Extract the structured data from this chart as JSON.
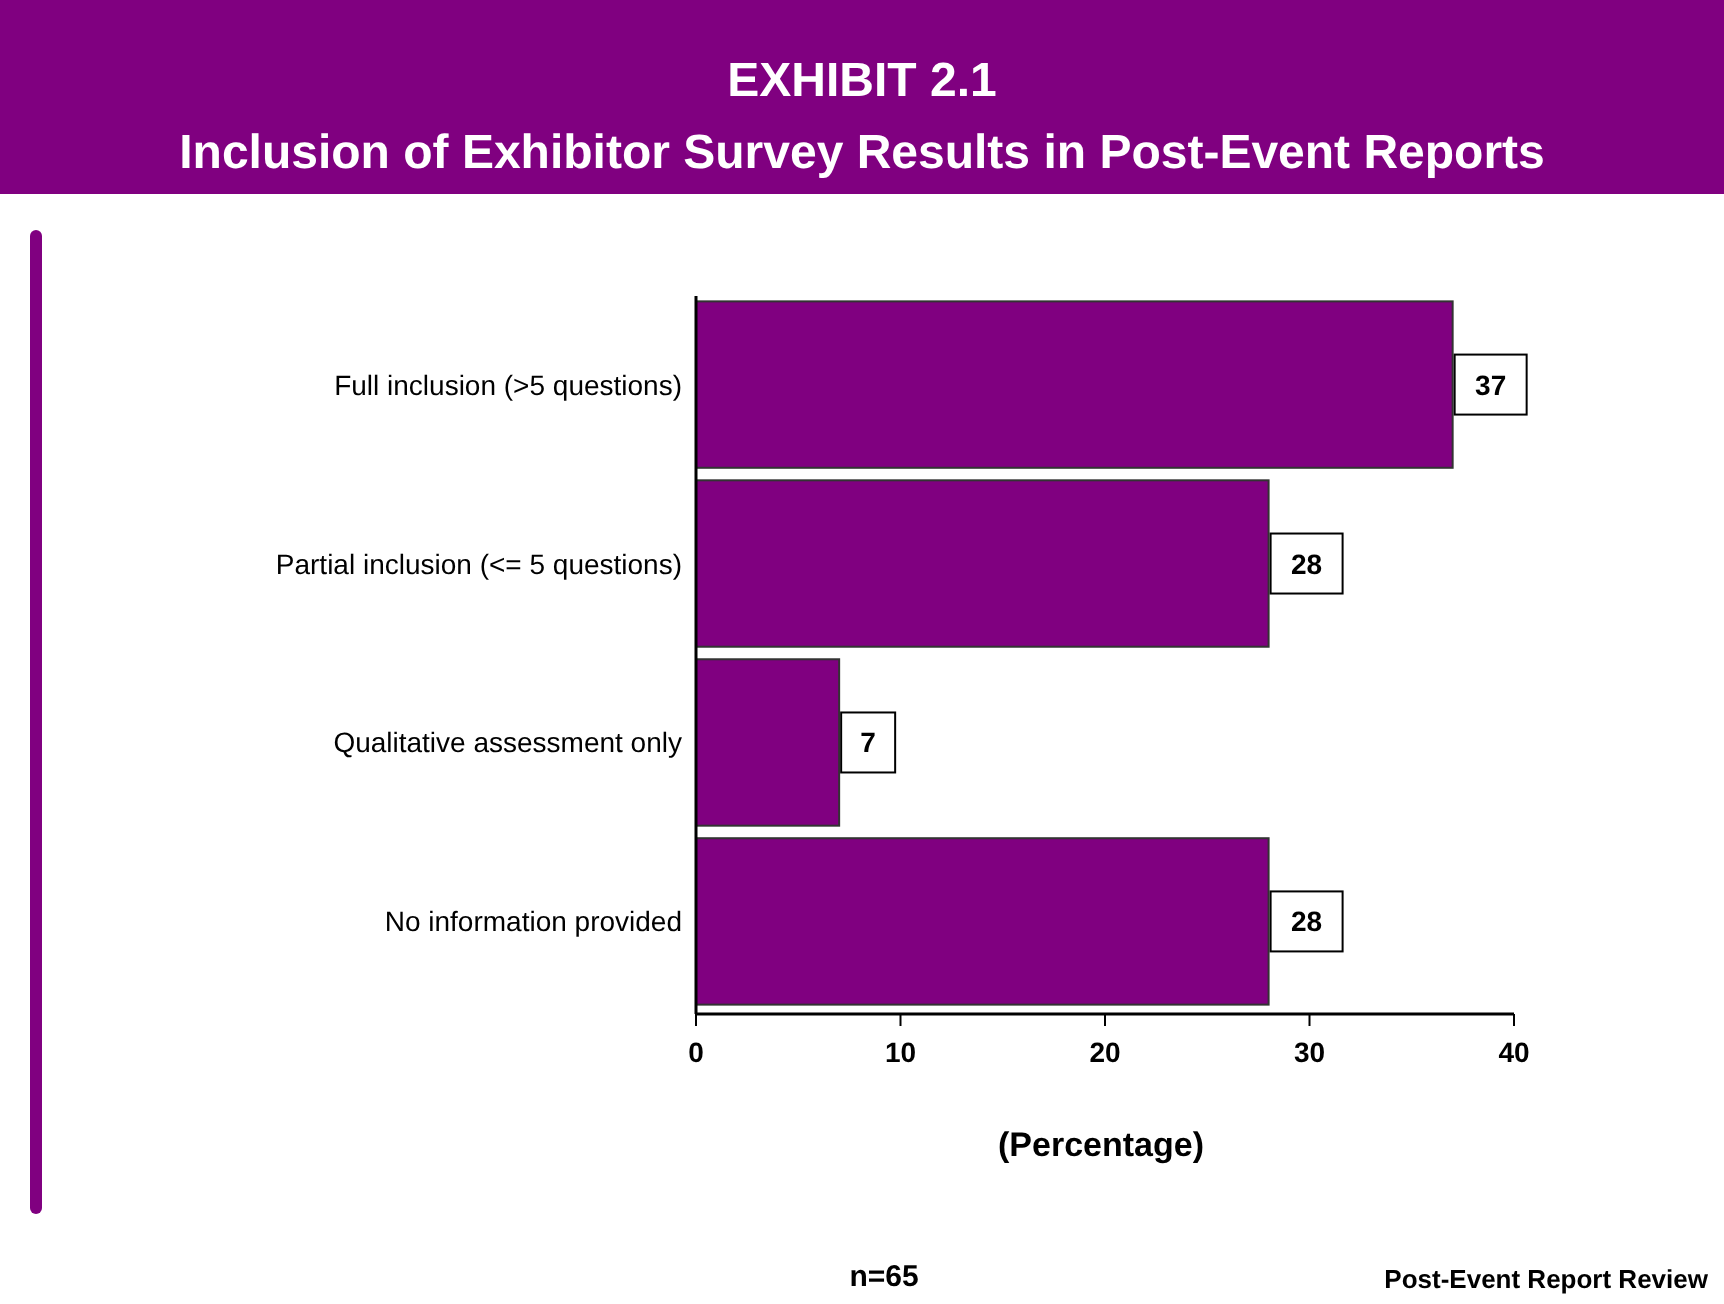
{
  "chart_data": {
    "type": "bar",
    "orientation": "horizontal",
    "title": "EXHIBIT 2.1",
    "subtitle": "Inclusion of Exhibitor Survey Results in Post-Event Reports",
    "categories": [
      "Full inclusion (>5 questions)",
      "Partial inclusion (<= 5 questions)",
      "Qualitative assessment only",
      "No information provided"
    ],
    "values": [
      37,
      28,
      7,
      28
    ],
    "color": "#800080",
    "xlim": [
      0,
      40
    ],
    "xticks": [
      0,
      10,
      20,
      30,
      40
    ],
    "xlabel": "(Percentage)",
    "data_labels": true,
    "grid": false,
    "annotations": [
      "n=65",
      "Post-Event Report Review"
    ]
  }
}
